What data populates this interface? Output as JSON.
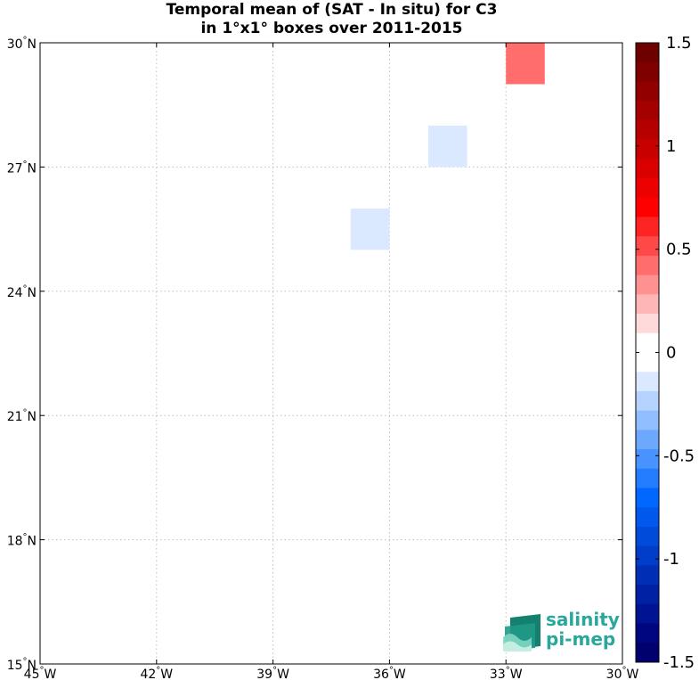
{
  "chart_data": {
    "type": "heatmap",
    "title": "Temporal mean of (SAT - In situ) for C3",
    "subtitle": "in 1°x1° boxes over 2011-2015",
    "x_axis": {
      "range": [
        -45,
        -30
      ],
      "ticks": [
        {
          "value": -45,
          "num": "45",
          "hem": "W"
        },
        {
          "value": -42,
          "num": "42",
          "hem": "W"
        },
        {
          "value": -39,
          "num": "39",
          "hem": "W"
        },
        {
          "value": -36,
          "num": "36",
          "hem": "W"
        },
        {
          "value": -33,
          "num": "33",
          "hem": "W"
        },
        {
          "value": -30,
          "num": "30",
          "hem": "W"
        }
      ]
    },
    "y_axis": {
      "range": [
        15,
        30
      ],
      "ticks": [
        {
          "value": 15,
          "num": "15",
          "hem": "N"
        },
        {
          "value": 18,
          "num": "18",
          "hem": "N"
        },
        {
          "value": 21,
          "num": "21",
          "hem": "N"
        },
        {
          "value": 24,
          "num": "24",
          "hem": "N"
        },
        {
          "value": 27,
          "num": "27",
          "hem": "N"
        },
        {
          "value": 30,
          "num": "30",
          "hem": "N"
        }
      ]
    },
    "grid": true,
    "cells": [
      {
        "lon_min": -33,
        "lon_max": -32,
        "lat_min": 29,
        "lat_max": 30,
        "value": 0.4
      },
      {
        "lon_min": -35,
        "lon_max": -34,
        "lat_min": 27,
        "lat_max": 28,
        "value": -0.1
      },
      {
        "lon_min": -37,
        "lon_max": -36,
        "lat_min": 25,
        "lat_max": 26,
        "value": -0.1
      }
    ],
    "colorbar": {
      "range": [
        -1.5,
        1.5
      ],
      "ticks": [
        {
          "value": 1.5,
          "label": "1.5"
        },
        {
          "value": 1,
          "label": "1"
        },
        {
          "value": 0.5,
          "label": "0.5"
        },
        {
          "value": 0,
          "label": "0"
        },
        {
          "value": -0.5,
          "label": "-0.5"
        },
        {
          "value": -1,
          "label": "-1"
        },
        {
          "value": -1.5,
          "label": "-1.5"
        }
      ],
      "colors_top_to_bottom": [
        "#6e0000",
        "#800000",
        "#920000",
        "#a40000",
        "#b60000",
        "#c80000",
        "#da0000",
        "#ec0000",
        "#ff0000",
        "#ff2424",
        "#ff4848",
        "#ff6d6d",
        "#ff9191",
        "#ffb6b6",
        "#ffdada",
        "#ffffff",
        "#ffffff",
        "#dae9ff",
        "#b6d3ff",
        "#91beff",
        "#6da8ff",
        "#4893ff",
        "#247dff",
        "#0068ff",
        "#0059ec",
        "#004bda",
        "#003dc8",
        "#002fb6",
        "#0021a4",
        "#001392",
        "#000580",
        "#00006e"
      ]
    },
    "logo": {
      "line1": "salinity",
      "line2": "pi-mep"
    }
  }
}
